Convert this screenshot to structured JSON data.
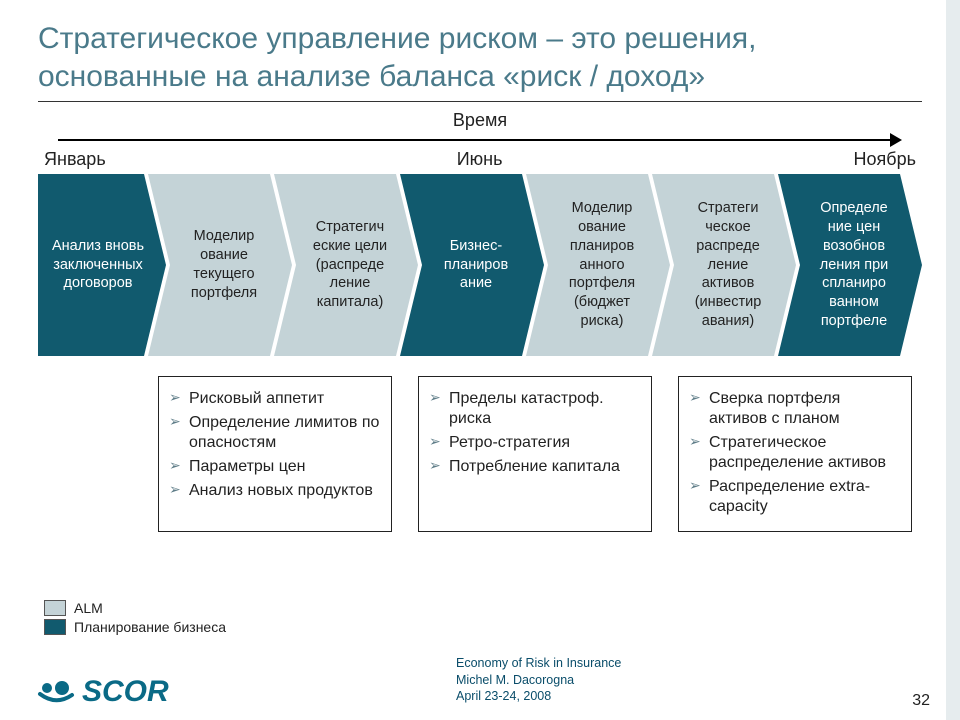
{
  "title": "Стратегическое управление риском – это решения, основанные на анализе баланса «риск / доход»",
  "timeline": {
    "label": "Время",
    "months": [
      "Январь",
      "Июнь",
      "Ноябрь"
    ]
  },
  "colors": {
    "dark": "#115a6e",
    "light": "#c4d3d7",
    "title": "#4a7a8a",
    "accent": "#e6ecee"
  },
  "steps": [
    {
      "label": "Анализ вновь заключенных договоров",
      "tone": "dark"
    },
    {
      "label": "Моделир ование текущего портфеля",
      "tone": "light"
    },
    {
      "label": "Стратегич еские цели (распреде ление капитала)",
      "tone": "light"
    },
    {
      "label": "Бизнес- планиров ание",
      "tone": "dark"
    },
    {
      "label": "Моделир ование планиров анного портфеля (бюджет риска)",
      "tone": "light"
    },
    {
      "label": "Стратеги ческое распреде ление активов (инвестир авания)",
      "tone": "light"
    },
    {
      "label": "Определе ние цен возобнов ления при спланиро ванном портфеле",
      "tone": "dark"
    }
  ],
  "callouts": [
    [
      "Рисковый аппетит",
      "Определение лимитов по опасностям",
      "Параметры цен",
      "Анализ новых продуктов"
    ],
    [
      "Пределы катастроф. риска",
      "Ретро-стратегия",
      "Потребление капитала"
    ],
    [
      "Сверка портфеля активов с планом",
      "Стратегическое распределение активов",
      "Распределение extra-capacity"
    ]
  ],
  "legend": [
    {
      "label": "ALM",
      "color": "#c4d3d7"
    },
    {
      "label": "Планирование бизнеса",
      "color": "#115a6e"
    }
  ],
  "footer": {
    "logo_text": "SCOR",
    "reference": [
      "Economy of Risk in Insurance",
      "Michel M. Dacorogna",
      "April 23-24, 2008"
    ],
    "page": "32"
  }
}
